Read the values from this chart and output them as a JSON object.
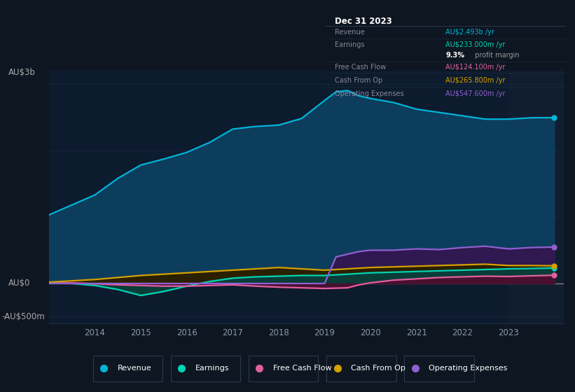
{
  "background_color": "#0e1621",
  "plot_bg": "#0d1b2e",
  "forecast_bg": "#111e30",
  "grid_color": "#1e3050",
  "years": [
    2013,
    2013.5,
    2014,
    2014.5,
    2015,
    2015.5,
    2016,
    2016.5,
    2017,
    2017.5,
    2018,
    2018.5,
    2019,
    2019.25,
    2019.5,
    2019.75,
    2020,
    2020.5,
    2021,
    2021.5,
    2022,
    2022.5,
    2023,
    2023.5,
    2024
  ],
  "revenue": [
    1.03,
    1.18,
    1.33,
    1.58,
    1.78,
    1.87,
    1.97,
    2.12,
    2.32,
    2.36,
    2.38,
    2.48,
    2.75,
    2.88,
    2.9,
    2.82,
    2.78,
    2.72,
    2.62,
    2.57,
    2.52,
    2.47,
    2.47,
    2.49,
    2.493
  ],
  "earnings": [
    0.01,
    0.0,
    -0.03,
    -0.09,
    -0.18,
    -0.12,
    -0.04,
    0.03,
    0.08,
    0.1,
    0.11,
    0.12,
    0.12,
    0.13,
    0.14,
    0.15,
    0.16,
    0.17,
    0.18,
    0.19,
    0.2,
    0.21,
    0.22,
    0.225,
    0.233
  ],
  "free_cash_flow": [
    0.0,
    0.01,
    -0.005,
    -0.02,
    -0.03,
    -0.04,
    -0.04,
    -0.03,
    -0.02,
    -0.04,
    -0.055,
    -0.065,
    -0.075,
    -0.07,
    -0.065,
    -0.02,
    0.01,
    0.05,
    0.07,
    0.09,
    0.1,
    0.11,
    0.105,
    0.115,
    0.1241
  ],
  "cash_from_op": [
    0.02,
    0.04,
    0.06,
    0.09,
    0.12,
    0.14,
    0.16,
    0.18,
    0.2,
    0.22,
    0.24,
    0.22,
    0.2,
    0.21,
    0.22,
    0.23,
    0.24,
    0.25,
    0.26,
    0.27,
    0.28,
    0.29,
    0.27,
    0.27,
    0.2658
  ],
  "op_expenses": [
    0.0,
    0.0,
    0.0,
    0.0,
    0.0,
    0.0,
    0.0,
    0.0,
    0.0,
    0.0,
    0.0,
    0.0,
    0.0,
    0.4,
    0.44,
    0.48,
    0.5,
    0.5,
    0.52,
    0.51,
    0.54,
    0.56,
    0.52,
    0.54,
    0.5476
  ],
  "revenue_color": "#00b4d8",
  "revenue_fill": "#0d3d5c",
  "earnings_color": "#00d4b4",
  "earnings_fill": "#0a3d38",
  "free_cash_flow_color": "#e060a0",
  "free_cash_flow_fill": "#4a1030",
  "cash_from_op_color": "#d4a000",
  "cash_from_op_fill": "#2a2000",
  "op_expenses_color": "#9060d0",
  "op_expenses_fill": "#301850",
  "ylim": [
    -0.6,
    3.2
  ],
  "yticks": [
    -0.5,
    0.0,
    3.0
  ],
  "ytick_labels_left": [
    "-AU$500m",
    "AU$0",
    "AU$3b"
  ],
  "ytick_positions_left": [
    -0.5,
    0.0,
    3.0
  ],
  "forecast_start_year": 2023,
  "xlim_start": 2013.0,
  "xlim_end": 2024.2,
  "xtick_years": [
    2014,
    2015,
    2016,
    2017,
    2018,
    2019,
    2020,
    2021,
    2022,
    2023
  ],
  "info_box": {
    "title": "Dec 31 2023",
    "rows": [
      {
        "label": "Revenue",
        "value": "AU$2.493b /yr",
        "value_color": "#00b4d8"
      },
      {
        "label": "Earnings",
        "value": "AU$233.000m /yr",
        "value_color": "#00d4b4"
      },
      {
        "label": "",
        "value": "9.3%",
        "value2": " profit margin",
        "value_color": "#ffffff",
        "value2_color": "#999999"
      },
      {
        "label": "Free Cash Flow",
        "value": "AU$124.100m /yr",
        "value_color": "#e060a0"
      },
      {
        "label": "Cash From Op",
        "value": "AU$265.800m /yr",
        "value_color": "#d4a000"
      },
      {
        "label": "Operating Expenses",
        "value": "AU$547.600m /yr",
        "value_color": "#9060d0"
      }
    ]
  },
  "legend": [
    {
      "label": "Revenue",
      "color": "#00b4d8"
    },
    {
      "label": "Earnings",
      "color": "#00d4b4"
    },
    {
      "label": "Free Cash Flow",
      "color": "#e060a0"
    },
    {
      "label": "Cash From Op",
      "color": "#d4a000"
    },
    {
      "label": "Operating Expenses",
      "color": "#9060d0"
    }
  ]
}
